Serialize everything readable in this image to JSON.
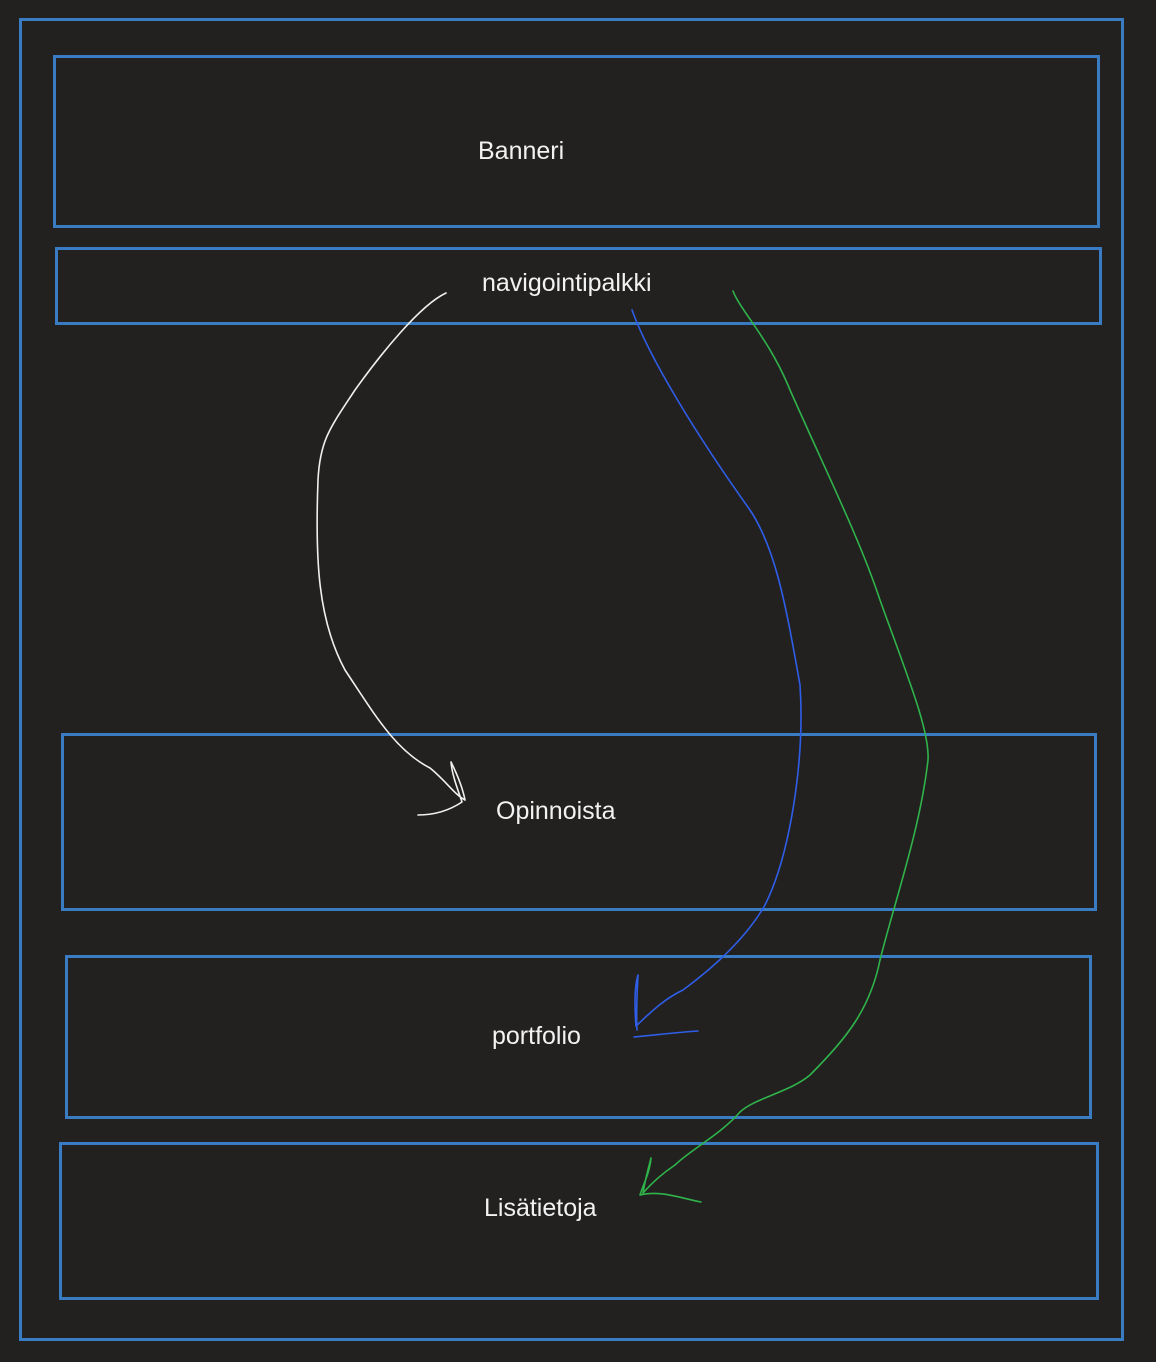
{
  "sections": {
    "banner": "Banneri",
    "nav": "navigointipalkki",
    "opinnoista": "Opinnoista",
    "portfolio": "portfolio",
    "lisatietoja": "Lisätietoja"
  },
  "colors": {
    "background": "#222120",
    "box_border": "#3a7cc4",
    "text": "#f2f2f2",
    "arrow_to_opinnoista": "#f0f0f0",
    "arrow_to_portfolio": "#2f5ee8",
    "arrow_to_lisatietoja": "#2fb34a"
  }
}
